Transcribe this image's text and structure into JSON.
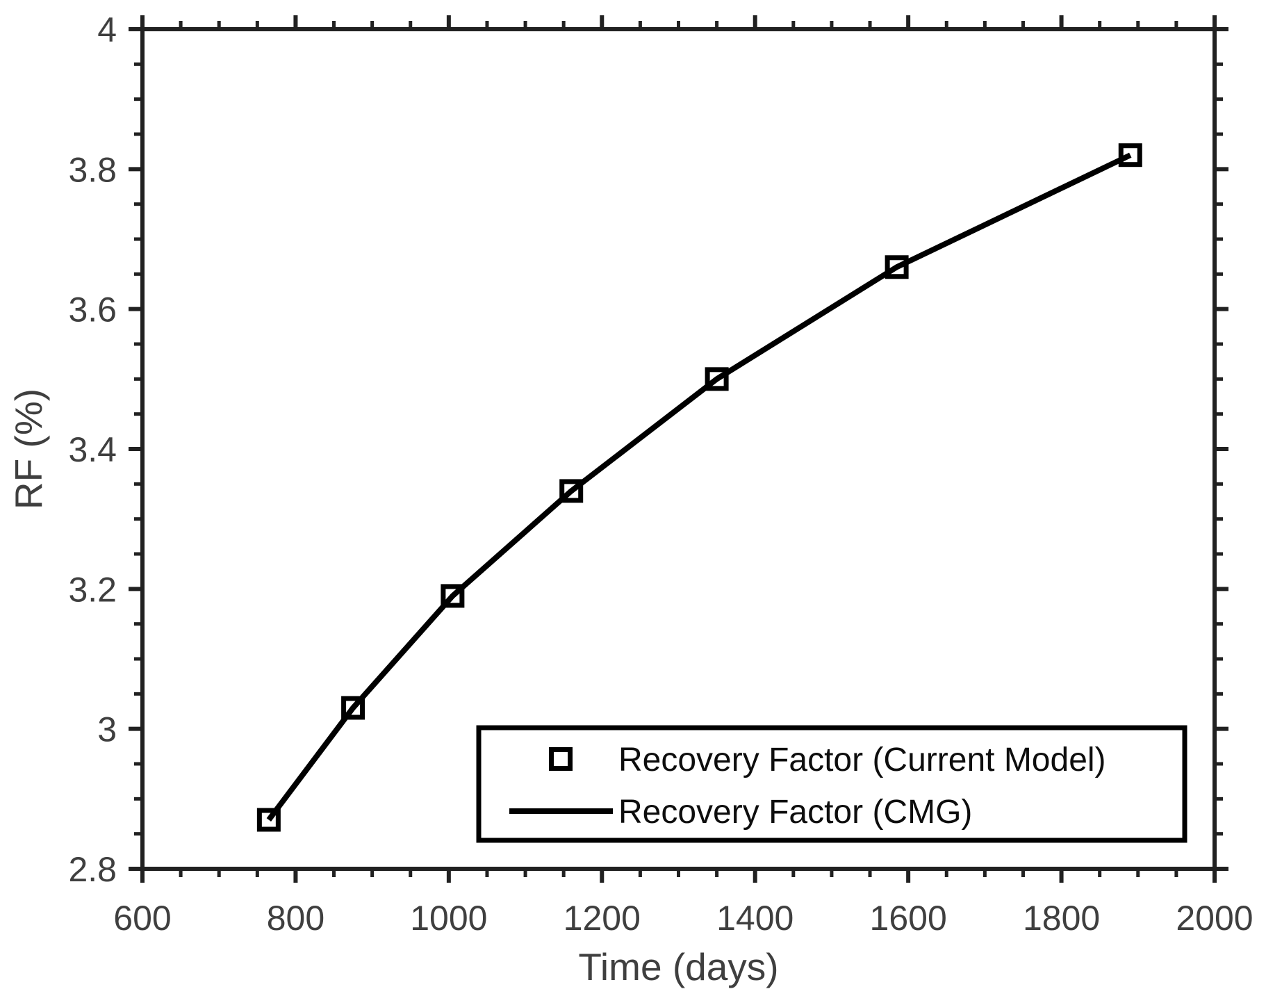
{
  "chart_data": {
    "type": "line",
    "title": "",
    "xlabel": "Time (days)",
    "ylabel": "RF (%)",
    "xlim": [
      600,
      2000
    ],
    "ylim": [
      2.8,
      4.0
    ],
    "x_major_ticks": [
      600,
      800,
      1000,
      1200,
      1400,
      1600,
      1800,
      2000
    ],
    "x_tick_labels": [
      "600",
      "800",
      "1000",
      "1200",
      "1400",
      "1600",
      "1800",
      "2000"
    ],
    "x_minor_step": 50,
    "y_major_ticks": [
      2.8,
      3.0,
      3.2,
      3.4,
      3.6,
      3.8,
      4.0
    ],
    "y_tick_labels": [
      "2.8",
      "3",
      "3.2",
      "3.4",
      "3.6",
      "3.8",
      "4"
    ],
    "y_minor_step": 0.05,
    "grid": false,
    "tick_direction": "out",
    "legend_position": "inside-bottom-right",
    "series": [
      {
        "name": "Recovery Factor (Current Model)",
        "style": "markers-only",
        "marker": "open-square",
        "color": "#000000",
        "x": [
          765,
          875,
          1005,
          1160,
          1350,
          1585,
          1890
        ],
        "y": [
          2.87,
          3.03,
          3.19,
          3.34,
          3.5,
          3.66,
          3.82
        ]
      },
      {
        "name": "Recovery Factor (CMG)",
        "style": "solid-line",
        "color": "#000000",
        "x": [
          765,
          875,
          1005,
          1160,
          1350,
          1585,
          1890
        ],
        "y": [
          2.87,
          3.03,
          3.19,
          3.34,
          3.5,
          3.66,
          3.82
        ]
      }
    ]
  },
  "legend": {
    "entries": [
      {
        "label": "Recovery Factor (Current Model)",
        "icon": "open-square-marker"
      },
      {
        "label": "Recovery Factor (CMG)",
        "icon": "solid-line"
      }
    ]
  },
  "style": {
    "background": "#ffffff",
    "axis_color": "#212121",
    "tick_label_color": "#3f3f3f",
    "axis_label_color": "#3f3f3f",
    "series_color": "#000000",
    "legend_border_color": "#000000",
    "legend_fill": "#ffffff",
    "legend_text_color": "#0d0d0d"
  }
}
